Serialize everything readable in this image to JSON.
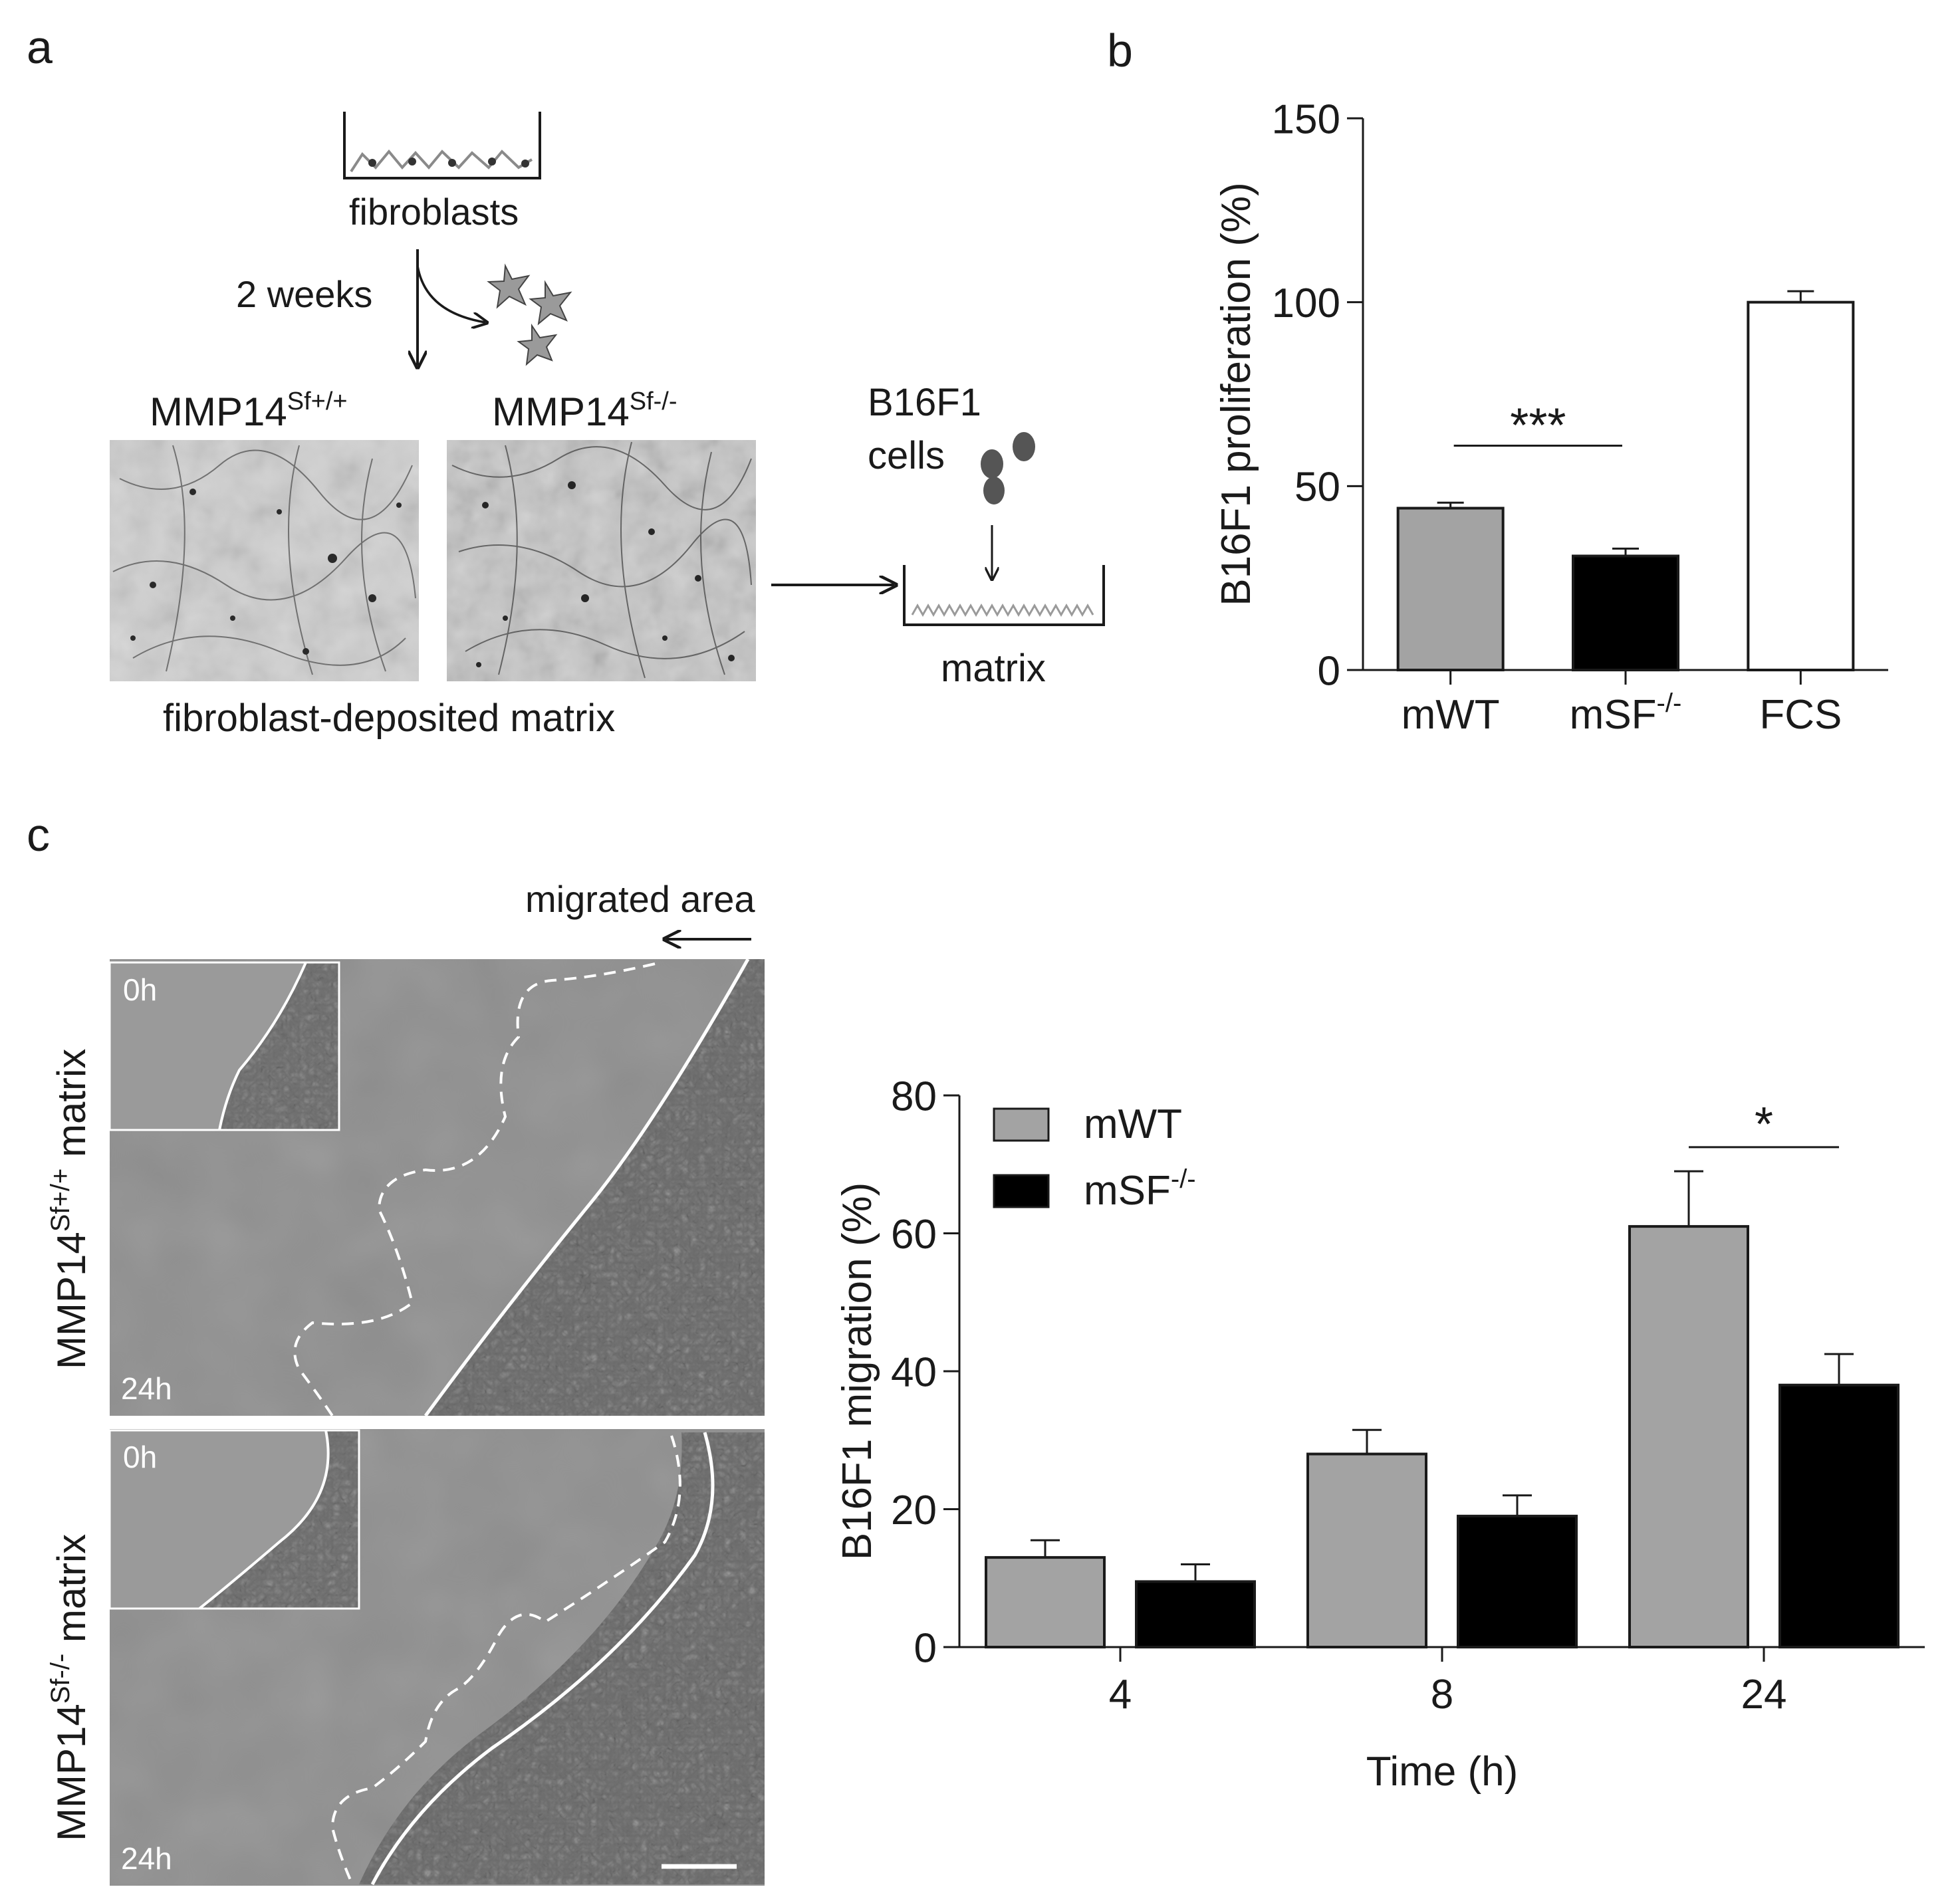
{
  "panel_labels": {
    "a": "a",
    "b": "b",
    "c": "c"
  },
  "panel_a": {
    "fibroblasts_label": "fibroblasts",
    "duration_label": "2 weeks",
    "left_title": "MMP14",
    "left_title_sup": "Sf+/+",
    "right_title": "MMP14",
    "right_title_sup": "Sf-/-",
    "matrix_caption": "fibroblast-deposited matrix",
    "b16_line1": "B16F1",
    "b16_line2": "cells",
    "matrix_label": "matrix"
  },
  "panel_c_images": {
    "migrated_area_label": "migrated area",
    "top_label": "MMP14",
    "top_label_sup": "Sf+/+",
    "top_label_suffix": " matrix",
    "bottom_label": "MMP14",
    "bottom_label_sup": "Sf-/-",
    "bottom_label_suffix": " matrix",
    "inset_time": "0h",
    "main_time": "24h"
  },
  "chart_data": [
    {
      "id": "b",
      "type": "bar",
      "categories": [
        "mWT",
        "mSF",
        "FCS"
      ],
      "category_sups": [
        "",
        "-/-",
        ""
      ],
      "values": [
        44,
        31,
        100
      ],
      "errors": [
        1.5,
        2,
        3
      ],
      "bar_colors": [
        "#a3a3a3",
        "#000000",
        "#ffffff"
      ],
      "ylabel": "B16F1 proliferation (%)",
      "ylim": [
        0,
        150
      ],
      "yticks": [
        0,
        50,
        100,
        150
      ],
      "significance": [
        {
          "from": 0,
          "to": 1,
          "label": "***"
        }
      ],
      "grid": false
    },
    {
      "id": "c",
      "type": "bar",
      "categories": [
        "4",
        "8",
        "24"
      ],
      "series": [
        {
          "name": "mWT",
          "name_sup": "",
          "color": "#a3a3a3",
          "values": [
            13,
            28,
            61
          ],
          "errors": [
            2.5,
            3.5,
            8
          ]
        },
        {
          "name": "mSF",
          "name_sup": "-/-",
          "color": "#000000",
          "values": [
            9.5,
            19,
            38
          ],
          "errors": [
            2.5,
            3,
            4.5
          ]
        }
      ],
      "xlabel": "Time (h)",
      "ylabel": "B16F1 migration (%)",
      "ylim": [
        0,
        80
      ],
      "yticks": [
        0,
        20,
        40,
        60,
        80
      ],
      "legend": "top-left",
      "significance": [
        {
          "category": 2,
          "label": "*"
        }
      ],
      "grid": false
    }
  ]
}
